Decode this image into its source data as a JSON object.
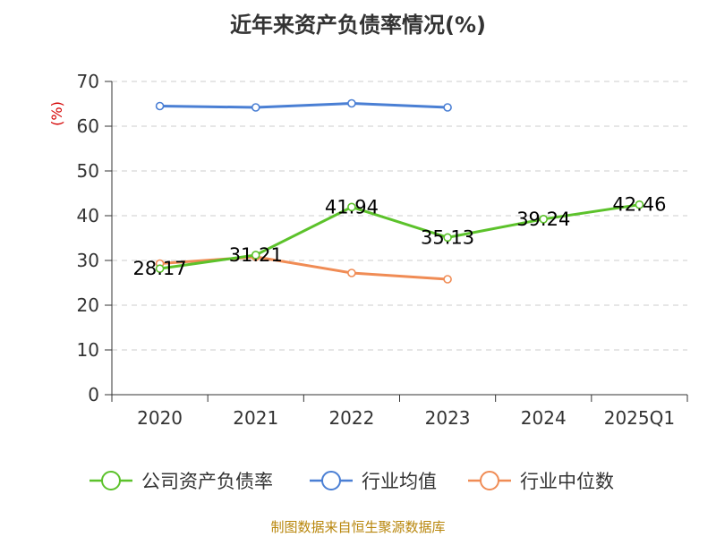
{
  "chart_data": {
    "type": "line",
    "title": "近年来资产负债率情况(%)",
    "ylabel": "(%)",
    "categories": [
      "2020",
      "2021",
      "2022",
      "2023",
      "2024",
      "2025Q1"
    ],
    "ylim": [
      0,
      70
    ],
    "yticks": [
      0,
      10,
      20,
      30,
      40,
      50,
      60,
      70
    ],
    "grid": true,
    "legend_position": "bottom",
    "series": [
      {
        "name": "公司资产负债率",
        "color": "#5cc22b",
        "values": [
          28.17,
          31.21,
          41.94,
          35.13,
          39.24,
          42.46
        ],
        "labels": [
          "28.17",
          "31.21",
          "41.94",
          "35.13",
          "39.24",
          "42.46"
        ]
      },
      {
        "name": "行业均值",
        "color": "#4a7fd4",
        "values": [
          64.5,
          64.2,
          65.1,
          64.2,
          null,
          null
        ]
      },
      {
        "name": "行业中位数",
        "color": "#f08c55",
        "values": [
          29.3,
          30.8,
          27.2,
          25.8,
          null,
          null
        ]
      }
    ]
  },
  "source": "制图数据来自恒生聚源数据库"
}
